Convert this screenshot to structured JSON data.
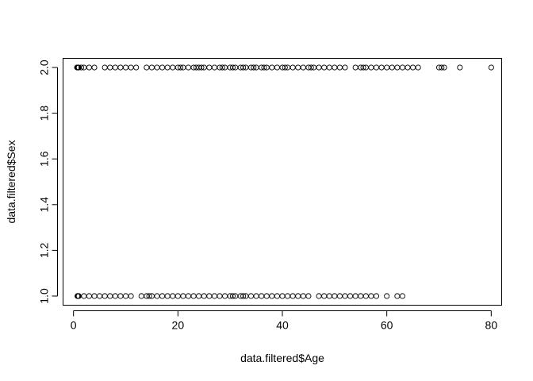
{
  "chart_data": {
    "type": "scatter",
    "title": "",
    "xlabel": "data.filtered$Age",
    "ylabel": "data.filtered$Sex",
    "xlim": [
      -2,
      82
    ],
    "ylim": [
      0.96,
      2.04
    ],
    "x_ticks": [
      0,
      20,
      40,
      60,
      80
    ],
    "x_tick_labels": [
      "0",
      "20",
      "40",
      "60",
      "80"
    ],
    "y_ticks": [
      1.0,
      1.2,
      1.4,
      1.6,
      1.8,
      2.0
    ],
    "y_tick_labels": [
      "1.0",
      "1.2",
      "1.4",
      "1.6",
      "1.8",
      "2.0"
    ],
    "grid": false,
    "marker": "open-circle",
    "series": [
      {
        "values_y": 2,
        "x": [
          0.67,
          0.75,
          0.83,
          0.92,
          1,
          1.5,
          2,
          3,
          4,
          6,
          7,
          8,
          9,
          10,
          11,
          12,
          14,
          15,
          16,
          17,
          18,
          19,
          20,
          20.5,
          21,
          22,
          23,
          23.5,
          24,
          24.5,
          25,
          26,
          27,
          28,
          28.5,
          29,
          30,
          30.5,
          31,
          32,
          32.5,
          33,
          34,
          34.5,
          35,
          36,
          36.5,
          37,
          38,
          39,
          40,
          40.5,
          41,
          42,
          43,
          44,
          45,
          45.5,
          46,
          47,
          48,
          49,
          50,
          51,
          52,
          54,
          55,
          55.5,
          56,
          57,
          58,
          59,
          60,
          61,
          62,
          63,
          64,
          65,
          66,
          70,
          70.5,
          71,
          74,
          80
        ]
      },
      {
        "values_y": 1,
        "x": [
          0.75,
          0.83,
          0.92,
          1,
          2,
          3,
          4,
          5,
          6,
          7,
          8,
          9,
          10,
          11,
          13,
          14,
          14.5,
          15,
          16,
          17,
          18,
          19,
          20,
          21,
          22,
          23,
          24,
          25,
          26,
          27,
          28,
          29,
          30,
          30.5,
          31,
          32,
          32.5,
          33,
          34,
          35,
          36,
          37,
          38,
          39,
          40,
          41,
          42,
          43,
          44,
          45,
          47,
          48,
          49,
          50,
          51,
          52,
          53,
          54,
          55,
          56,
          57,
          58,
          60,
          62,
          63
        ]
      }
    ]
  }
}
